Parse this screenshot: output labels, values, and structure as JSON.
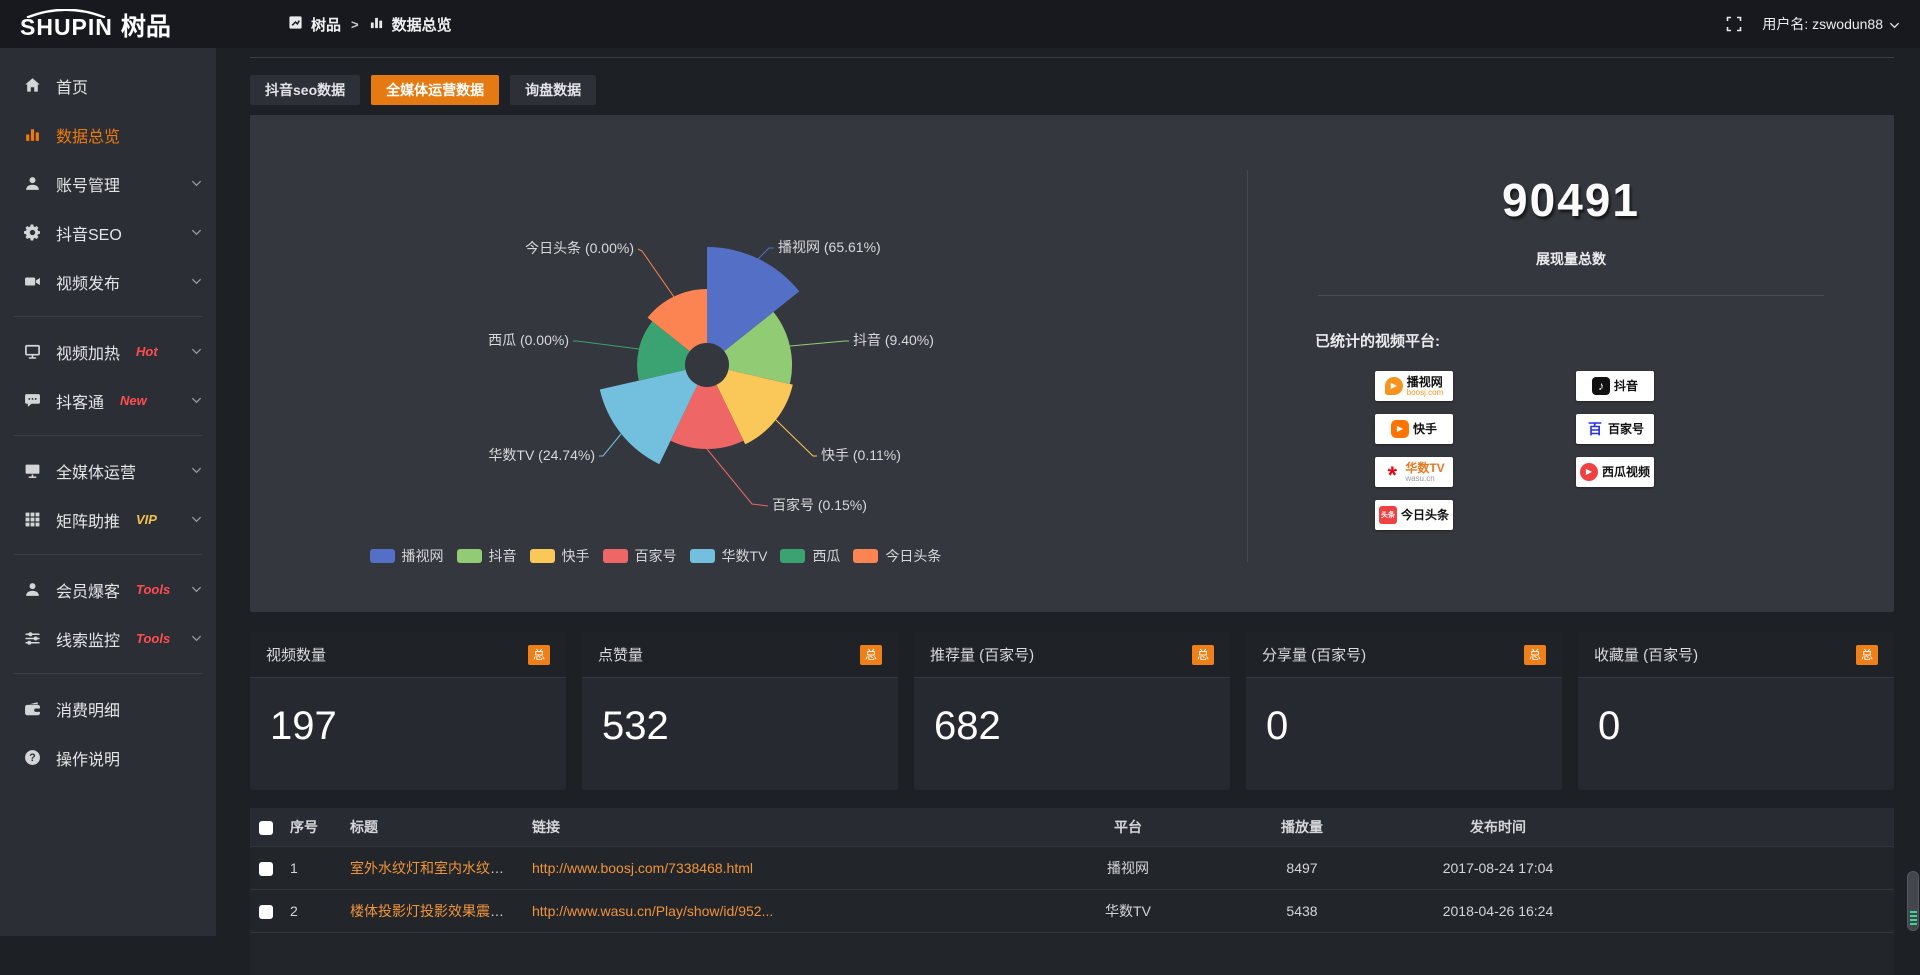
{
  "topbar": {
    "logo_en": "SHUPIN",
    "logo_cn": "树品",
    "breadcrumb": {
      "root": "树品",
      "separator": ">",
      "current": "数据总览"
    },
    "user_label": "用户名: zswodun88"
  },
  "sidebar": {
    "items": [
      {
        "label": "首页",
        "icon": "home-icon"
      },
      {
        "label": "数据总览",
        "icon": "bar-chart-icon",
        "active": true
      },
      {
        "label": "账号管理",
        "icon": "user-icon",
        "chevron": true
      },
      {
        "label": "抖音SEO",
        "icon": "gear-icon",
        "chevron": true
      },
      {
        "label": "视频发布",
        "icon": "video-camera-icon",
        "chevron": true,
        "divider_after": true
      },
      {
        "label": "视频加热",
        "icon": "monitor-play-icon",
        "chevron": true,
        "badge": "Hot",
        "badge_color": "#ff4d4f"
      },
      {
        "label": "抖客通",
        "icon": "chat-bubble-icon",
        "chevron": true,
        "badge": "New",
        "badge_color": "#ff4d4f",
        "divider_after": true
      },
      {
        "label": "全媒体运营",
        "icon": "monitor-icon",
        "chevron": true
      },
      {
        "label": "矩阵助推",
        "icon": "grid-icon",
        "chevron": true,
        "badge": "VIP",
        "badge_color": "#f2c14d",
        "divider_after": true
      },
      {
        "label": "会员爆客",
        "icon": "person-icon",
        "chevron": true,
        "badge": "Tools",
        "badge_color": "#ff4d4f"
      },
      {
        "label": "线索监控",
        "icon": "sliders-icon",
        "chevron": true,
        "badge": "Tools",
        "badge_color": "#ff4d4f",
        "divider_after": true
      },
      {
        "label": "消费明细",
        "icon": "wallet-icon"
      },
      {
        "label": "操作说明",
        "icon": "question-icon"
      }
    ]
  },
  "tabs": [
    {
      "label": "抖音seo数据",
      "active": false
    },
    {
      "label": "全媒体运营数据",
      "active": true
    },
    {
      "label": "询盘数据",
      "active": false
    }
  ],
  "chart_data": {
    "type": "pie",
    "variant": "nightingale-rose",
    "unit": "%",
    "label_format": "{name} ({percent}%)",
    "legend_position": "bottom",
    "items": [
      {
        "name": "播视网",
        "percent": "65.61",
        "color": "#5470c6"
      },
      {
        "name": "抖音",
        "percent": "9.40",
        "color": "#91cc75"
      },
      {
        "name": "快手",
        "percent": "0.11",
        "color": "#fac858"
      },
      {
        "name": "百家号",
        "percent": "0.15",
        "color": "#ee6666"
      },
      {
        "name": "华数TV",
        "percent": "24.74",
        "color": "#73c0de"
      },
      {
        "name": "西瓜",
        "percent": "0.00",
        "color": "#3ba272"
      },
      {
        "name": "今日头条",
        "percent": "0.00",
        "color": "#fc8452"
      }
    ]
  },
  "summary": {
    "total_value": "90491",
    "total_label": "展现量总数",
    "platforms_label": "已统计的视频平台:",
    "platform_columns": [
      [
        {
          "name": "播视网",
          "sub": "boosj.com",
          "sub_color": "#f7941d",
          "icon": "boosj-logo"
        },
        {
          "name": "快手",
          "icon": "kuaishou-logo"
        },
        {
          "name": "华数TV",
          "name_color": "#e87722",
          "sub": "wasu.cn",
          "sub_color": "#999999",
          "icon": "wasu-logo"
        },
        {
          "name": "今日头条",
          "icon": "toutiao-logo"
        }
      ],
      [
        {
          "name": "抖音",
          "icon": "douyin-logo"
        },
        {
          "name": "百家号",
          "icon": "baijiahao-logo"
        },
        {
          "name": "西瓜视频",
          "icon": "xigua-logo"
        }
      ]
    ]
  },
  "stat_cards": [
    {
      "title": "视频数量",
      "badge": "总",
      "value": "197"
    },
    {
      "title": "点赞量",
      "badge": "总",
      "value": "532"
    },
    {
      "title": "推荐量 (百家号)",
      "badge": "总",
      "value": "682"
    },
    {
      "title": "分享量 (百家号)",
      "badge": "总",
      "value": "0"
    },
    {
      "title": "收藏量 (百家号)",
      "badge": "总",
      "value": "0"
    }
  ],
  "table": {
    "headers": [
      "序号",
      "标题",
      "链接",
      "平台",
      "播放量",
      "发布时间"
    ],
    "rows": [
      {
        "index": "1",
        "title": "室外水纹灯和室内水纹灯的区别和简介",
        "link": "http://www.boosj.com/7338468.html",
        "platform": "播视网",
        "plays": "8497",
        "time": "2017-08-24 17:04"
      },
      {
        "index": "2",
        "title": "楼体投影灯投影效果震撼上市",
        "link": "http://www.wasu.cn/Play/show/id/952...",
        "platform": "华数TV",
        "plays": "5438",
        "time": "2018-04-26 16:24"
      }
    ]
  },
  "colors": {
    "accent": "#e67a12",
    "link": "#f0943c",
    "badge": "#ef8019"
  }
}
